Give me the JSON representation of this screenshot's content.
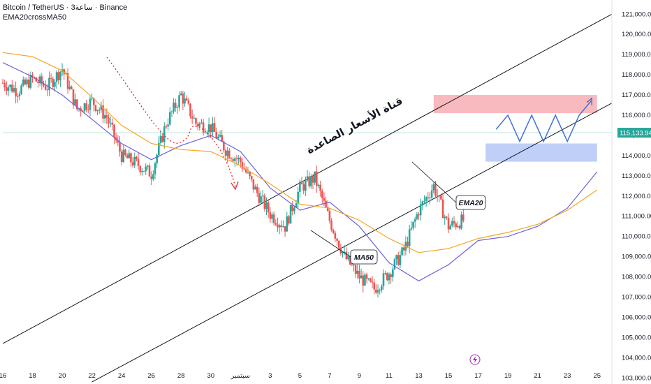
{
  "header": {
    "symbol_line": "Bitcoin / TetherUS · 3ساعة · Binance",
    "indicator_line": "EMA20crossMA50"
  },
  "colors": {
    "up": "#26a69a",
    "down": "#ef5350",
    "ema": "#6b63d8",
    "ma": "#f5a623",
    "channel": "#131722",
    "resistance": "#f5a3a8",
    "support": "#a9bff5",
    "projection": "#3f6fd8",
    "downtrend": "#e8333c",
    "price_line": "#26a69a",
    "price_badge": "#26a69a"
  },
  "annotations": {
    "channel_title": "قناة الأسعار الصاعدة",
    "ema_callout": "EMA20",
    "ma_callout": "MA50",
    "flash_icon": "lightning-icon"
  },
  "price_tag": "115,133.94",
  "chart_data": {
    "type": "candlestick",
    "title": "Bitcoin / TetherUS · 3ساعة · Binance",
    "indicators": [
      "EMA20",
      "MA50"
    ],
    "yaxis": {
      "ticks": [
        "103,000.00",
        "104,000.00",
        "105,000.00",
        "106,000.00",
        "107,000.00",
        "108,000.00",
        "109,000.00",
        "110,000.00",
        "111,000.00",
        "112,000.00",
        "113,000.00",
        "114,000.00",
        "115,000.00",
        "116,000.00",
        "117,000.00",
        "118,000.00",
        "119,000.00",
        "120,000.00",
        "121,000.00"
      ],
      "range": [
        102700,
        121700
      ]
    },
    "xaxis": {
      "ticks": [
        "16",
        "18",
        "20",
        "22",
        "24",
        "26",
        "28",
        "30",
        "سبتمبر",
        "3",
        "5",
        "7",
        "9",
        "11",
        "13",
        "15",
        "17",
        "19",
        "21",
        "23",
        "25"
      ],
      "range_days": [
        0,
        41
      ]
    },
    "current_price": 115133.94,
    "series": [
      {
        "name": "Price (close)",
        "x_days": [
          0,
          1,
          2,
          3,
          4,
          5,
          6,
          7,
          8,
          9,
          10,
          11,
          12,
          13,
          14,
          15,
          16,
          17,
          18,
          19,
          20,
          21,
          22,
          23,
          24,
          25,
          26,
          27,
          28,
          29,
          30,
          31
        ],
        "close": [
          117600,
          117200,
          117800,
          117400,
          118300,
          116300,
          116700,
          115900,
          114000,
          113600,
          113100,
          115600,
          117000,
          115600,
          115400,
          114300,
          113700,
          112300,
          111100,
          110500,
          112400,
          112900,
          110800,
          109000,
          108000,
          107400,
          108200,
          109300,
          111300,
          112500,
          110500,
          110800
        ]
      },
      {
        "name": "EMA20",
        "x_days": [
          0,
          2,
          4,
          6,
          8,
          10,
          12,
          14,
          16,
          18,
          20,
          22,
          24,
          26,
          28,
          30,
          32,
          34,
          36,
          38,
          40
        ],
        "y": [
          118600,
          117900,
          117000,
          115800,
          114600,
          113800,
          114500,
          115000,
          114200,
          112400,
          111300,
          111700,
          110500,
          108700,
          107800,
          108600,
          109800,
          110000,
          110500,
          111400,
          113200
        ]
      },
      {
        "name": "MA50",
        "x_days": [
          0,
          2,
          4,
          6,
          8,
          10,
          12,
          14,
          16,
          18,
          20,
          22,
          24,
          26,
          28,
          30,
          32,
          34,
          36,
          38,
          40
        ],
        "y": [
          119100,
          118900,
          118200,
          116900,
          115500,
          114600,
          114300,
          114200,
          113500,
          112600,
          111600,
          111400,
          110800,
          109900,
          109200,
          109400,
          109900,
          110200,
          110600,
          111300,
          112300
        ]
      }
    ],
    "zones": [
      {
        "name": "resistance",
        "from_day": 29,
        "to_day": 40,
        "low": 116100,
        "high": 117000
      },
      {
        "name": "support",
        "from_day": 32.5,
        "to_day": 40,
        "low": 113700,
        "high": 114600
      }
    ],
    "channel": {
      "upper": {
        "day_a": 0,
        "price_a": 104700,
        "day_b": 41,
        "price_b": 121000
      },
      "lower": {
        "day_a": 6,
        "price_a": 102800,
        "day_b": 41,
        "price_b": 116600
      }
    },
    "grid": false,
    "legend": "top-left"
  }
}
